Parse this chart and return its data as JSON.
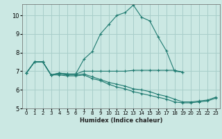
{
  "xlabel": "Humidex (Indice chaleur)",
  "background_color": "#cbe8e3",
  "grid_color": "#a8ceca",
  "line_color": "#1e7a70",
  "xlim": [
    -0.5,
    23.5
  ],
  "ylim": [
    5,
    10.6
  ],
  "yticks": [
    5,
    6,
    7,
    8,
    9,
    10
  ],
  "xticks": [
    0,
    1,
    2,
    3,
    4,
    5,
    6,
    7,
    8,
    9,
    10,
    11,
    12,
    13,
    14,
    15,
    16,
    17,
    18,
    19,
    20,
    21,
    22,
    23
  ],
  "lines": [
    {
      "x": [
        0,
        1,
        2,
        3,
        4,
        5,
        6,
        7,
        8,
        9,
        10,
        11,
        12,
        13,
        14,
        15,
        16,
        17,
        18,
        19
      ],
      "y": [
        6.9,
        7.5,
        7.5,
        6.8,
        6.9,
        6.85,
        6.85,
        7.65,
        8.05,
        9.0,
        9.5,
        10.0,
        10.15,
        10.55,
        9.9,
        9.7,
        8.85,
        8.1,
        7.0,
        6.95
      ]
    },
    {
      "x": [
        0,
        1,
        2,
        3,
        4,
        5,
        6,
        7,
        8,
        9,
        10,
        11,
        12,
        13,
        14,
        15,
        16,
        17,
        18,
        19
      ],
      "y": [
        6.9,
        7.5,
        7.5,
        6.8,
        6.9,
        6.85,
        6.85,
        7.0,
        7.0,
        7.0,
        7.0,
        7.0,
        7.0,
        7.05,
        7.05,
        7.05,
        7.05,
        7.05,
        7.05,
        6.95
      ]
    },
    {
      "x": [
        0,
        1,
        2,
        3,
        4,
        5,
        6,
        7,
        8,
        9,
        10,
        11,
        12,
        13,
        14,
        15,
        16,
        17,
        18,
        19,
        20,
        21,
        22,
        23
      ],
      "y": [
        6.9,
        7.5,
        7.5,
        6.8,
        6.85,
        6.8,
        6.8,
        6.85,
        6.7,
        6.55,
        6.4,
        6.3,
        6.2,
        6.05,
        6.0,
        5.9,
        5.75,
        5.65,
        5.5,
        5.35,
        5.35,
        5.4,
        5.45,
        5.6
      ]
    },
    {
      "x": [
        0,
        1,
        2,
        3,
        4,
        5,
        6,
        7,
        8,
        9,
        10,
        11,
        12,
        13,
        14,
        15,
        16,
        17,
        18,
        19,
        20,
        21,
        22,
        23
      ],
      "y": [
        6.9,
        7.5,
        7.5,
        6.8,
        6.8,
        6.75,
        6.75,
        6.8,
        6.6,
        6.5,
        6.3,
        6.15,
        6.05,
        5.9,
        5.8,
        5.7,
        5.6,
        5.5,
        5.35,
        5.3,
        5.3,
        5.35,
        5.4,
        5.55
      ]
    }
  ]
}
